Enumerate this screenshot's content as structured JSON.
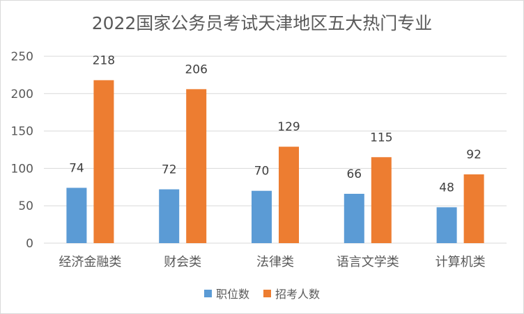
{
  "chart_data": {
    "type": "bar",
    "title": "2022国家公务员考试天津地区五大热门专业",
    "categories": [
      "经济金融类",
      "财会类",
      "法律类",
      "语言文学类",
      "计算机类"
    ],
    "series": [
      {
        "name": "职位数",
        "values": [
          74,
          72,
          70,
          66,
          48
        ],
        "color": "#5b9bd5"
      },
      {
        "name": "招考人数",
        "values": [
          218,
          206,
          129,
          115,
          92
        ],
        "color": "#ed7d31"
      }
    ],
    "ylim": [
      0,
      250
    ],
    "yticks": [
      0,
      50,
      100,
      150,
      200,
      250
    ],
    "grid": true,
    "legend_position": "bottom"
  }
}
